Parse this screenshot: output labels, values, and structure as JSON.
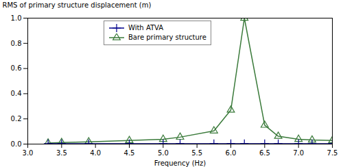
{
  "chart_data": {
    "type": "line",
    "xlabel": "Frequency (Hz)",
    "ylabel": "RMS of primary structure displacement (m)",
    "x": [
      3.3,
      3.5,
      3.9,
      4.5,
      5.0,
      5.25,
      5.75,
      6.0,
      6.2,
      6.5,
      6.7,
      7.0,
      7.2,
      7.5
    ],
    "series": [
      {
        "name": "With ATVA",
        "color": "#00008B",
        "marker": "plus",
        "values": [
          0.003,
          0.003,
          0.003,
          0.003,
          0.003,
          0.003,
          0.003,
          0.003,
          0.003,
          0.003,
          0.003,
          0.003,
          0.003,
          0.003
        ]
      },
      {
        "name": "Bare primary structure",
        "color": "#3a7a3a",
        "marker": "triangle",
        "values": [
          0.008,
          0.012,
          0.018,
          0.028,
          0.038,
          0.055,
          0.105,
          0.27,
          1.0,
          0.15,
          0.062,
          0.038,
          0.032,
          0.028
        ]
      }
    ],
    "xlim": [
      3,
      7.5
    ],
    "ylim": [
      0,
      1.0
    ],
    "xticks": [
      {
        "value": 3,
        "label": "3.0"
      },
      3.5,
      {
        "value": 4,
        "label": "4.0"
      },
      4.5,
      {
        "value": 5,
        "label": "5.0"
      },
      5.5,
      {
        "value": 6,
        "label": "6.0"
      },
      6.5,
      {
        "value": 7,
        "label": "7.0"
      },
      7.5
    ],
    "yticks": [
      {
        "value": 0,
        "label": "0.0"
      },
      0.2,
      0.4,
      0.6,
      0.8,
      {
        "value": 1.0,
        "label": "1.0"
      }
    ],
    "grid": false,
    "legend": "upper left"
  }
}
